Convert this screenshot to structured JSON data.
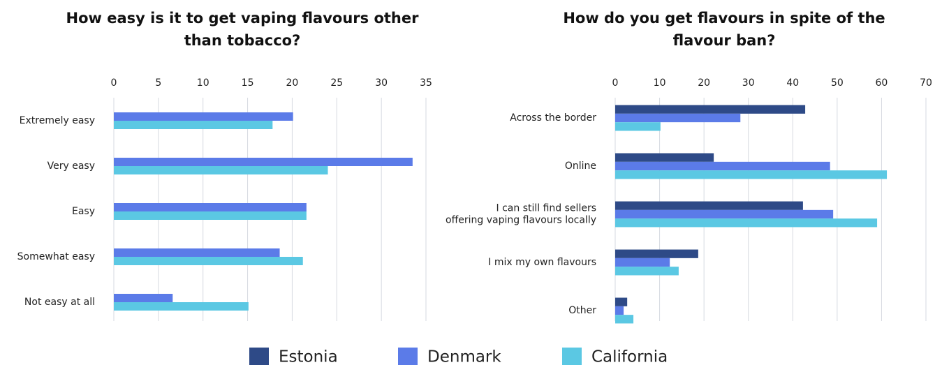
{
  "chart_data": [
    {
      "type": "bar",
      "orientation": "horizontal",
      "title": "How easy is it to get vaping flavours other than tobacco?",
      "categories": [
        "Extremely easy",
        "Very easy",
        "Easy",
        "Somewhat easy",
        "Not easy at all"
      ],
      "series": [
        {
          "color": "#5b7be8",
          "values": [
            20.1,
            33.5,
            21.6,
            18.6,
            6.6
          ]
        },
        {
          "color": "#5bc8e3",
          "values": [
            17.8,
            24.0,
            21.6,
            21.2,
            15.1
          ]
        }
      ],
      "xlim": [
        0,
        35
      ],
      "xticks": [
        0,
        5,
        10,
        15,
        20,
        25,
        30,
        35
      ],
      "grid": true
    },
    {
      "type": "bar",
      "orientation": "horizontal",
      "title": "How do you get flavours in spite of the flavour ban?",
      "categories": [
        "Across the border",
        "Online",
        "I can still find sellers offering vaping flavours locally",
        "I mix my own flavours",
        "Other"
      ],
      "series": [
        {
          "name": "Estonia",
          "color": "#2e4a87",
          "values": [
            42.8,
            22.2,
            42.3,
            18.7,
            2.7
          ]
        },
        {
          "name": "Denmark",
          "color": "#5b7be8",
          "values": [
            28.2,
            48.4,
            49.1,
            12.3,
            1.9
          ]
        },
        {
          "name": "California",
          "color": "#5bc8e3",
          "values": [
            10.2,
            61.2,
            59.0,
            14.3,
            4.1
          ]
        }
      ],
      "xlim": [
        0,
        70
      ],
      "xticks": [
        0,
        10,
        20,
        30,
        40,
        50,
        60,
        70
      ],
      "grid": true
    }
  ]
}
